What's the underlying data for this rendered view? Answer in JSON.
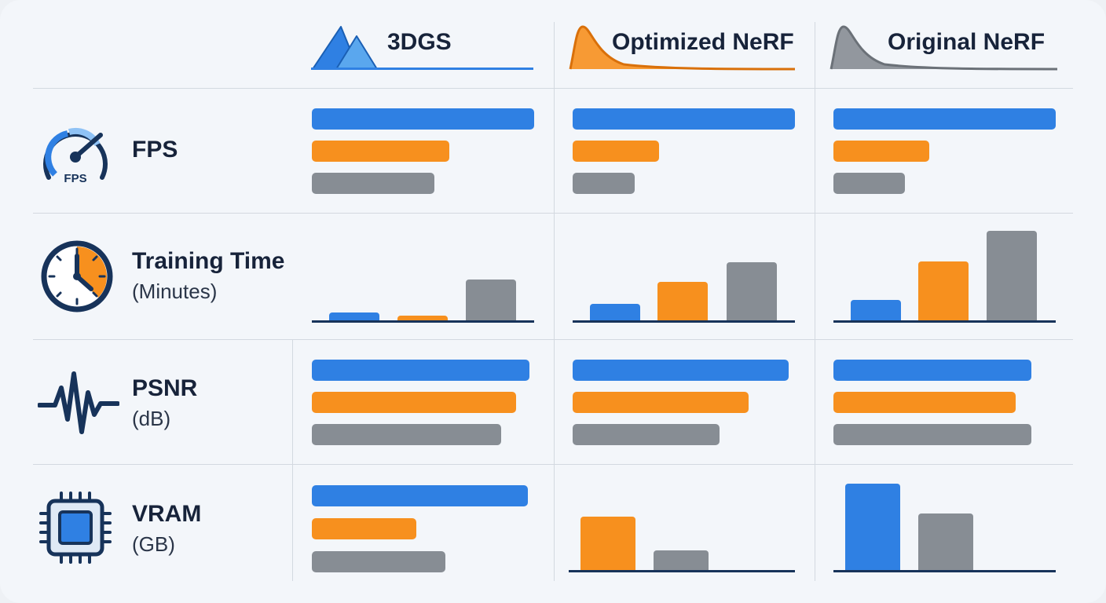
{
  "colors": {
    "3dgs": "#2f80e3",
    "optimized_nerf": "#f7901e",
    "original_nerf": "#878d94",
    "ink": "#17233a",
    "gridline": "#d3d9e0",
    "baseline": "#17335a"
  },
  "headers": [
    {
      "key": "3dgs",
      "label": "3DGS",
      "icon": "mountain-peaks-icon"
    },
    {
      "key": "optimized_nerf",
      "label": "Optimized NeRF",
      "icon": "orange-distribution-curve-icon"
    },
    {
      "key": "original_nerf",
      "label": "Original NeRF",
      "icon": "gray-distribution-curve-icon"
    }
  ],
  "metrics": {
    "fps": {
      "title": "FPS",
      "subtitle": "",
      "icon": "speedometer-icon",
      "icon_label": "FPS"
    },
    "training_time": {
      "title": "Training Time",
      "subtitle": "(Minutes)",
      "icon": "clock-icon"
    },
    "psnr": {
      "title": "PSNR",
      "subtitle": "(dB)",
      "icon": "waveform-icon"
    },
    "vram": {
      "title": "VRAM",
      "subtitle": "(GB)",
      "icon": "chip-icon"
    }
  },
  "chart_data": [
    {
      "type": "bar",
      "orientation": "horizontal",
      "metric": "FPS",
      "panel": "3DGS",
      "series": [
        {
          "color": "#2f80e3",
          "value": 1.0
        },
        {
          "color": "#f7901e",
          "value": 0.62
        },
        {
          "color": "#878d94",
          "value": 0.55
        }
      ],
      "xlim": [
        0,
        1
      ]
    },
    {
      "type": "bar",
      "orientation": "horizontal",
      "metric": "FPS",
      "panel": "Optimized NeRF",
      "series": [
        {
          "color": "#2f80e3",
          "value": 1.0
        },
        {
          "color": "#f7901e",
          "value": 0.39
        },
        {
          "color": "#878d94",
          "value": 0.28
        }
      ],
      "xlim": [
        0,
        1
      ]
    },
    {
      "type": "bar",
      "orientation": "horizontal",
      "metric": "FPS",
      "panel": "Original NeRF",
      "series": [
        {
          "color": "#2f80e3",
          "value": 1.0
        },
        {
          "color": "#f7901e",
          "value": 0.43
        },
        {
          "color": "#878d94",
          "value": 0.32
        }
      ],
      "xlim": [
        0,
        1
      ]
    },
    {
      "type": "bar",
      "orientation": "vertical",
      "metric": "Training Time (Minutes)",
      "panel": "3DGS",
      "series": [
        {
          "color": "#2f80e3",
          "value": 0.09
        },
        {
          "color": "#f7901e",
          "value": 0.05
        },
        {
          "color": "#878d94",
          "value": 0.45
        }
      ],
      "ylim": [
        0,
        1
      ]
    },
    {
      "type": "bar",
      "orientation": "vertical",
      "metric": "Training Time (Minutes)",
      "panel": "Optimized NeRF",
      "series": [
        {
          "color": "#2f80e3",
          "value": 0.23
        },
        {
          "color": "#f7901e",
          "value": 0.53
        },
        {
          "color": "#878d94",
          "value": 0.8
        }
      ],
      "ylim": [
        0,
        1
      ]
    },
    {
      "type": "bar",
      "orientation": "vertical",
      "metric": "Training Time (Minutes)",
      "panel": "Original NeRF",
      "series": [
        {
          "color": "#2f80e3",
          "value": 0.23
        },
        {
          "color": "#f7901e",
          "value": 0.66
        },
        {
          "color": "#878d94",
          "value": 1.0
        }
      ],
      "ylim": [
        0,
        1
      ]
    },
    {
      "type": "bar",
      "orientation": "horizontal",
      "metric": "PSNR (dB)",
      "panel": "3DGS",
      "series": [
        {
          "color": "#2f80e3",
          "value": 0.98
        },
        {
          "color": "#f7901e",
          "value": 0.92
        },
        {
          "color": "#878d94",
          "value": 0.85
        }
      ],
      "xlim": [
        0,
        1
      ]
    },
    {
      "type": "bar",
      "orientation": "horizontal",
      "metric": "PSNR (dB)",
      "panel": "Optimized NeRF",
      "series": [
        {
          "color": "#2f80e3",
          "value": 0.97
        },
        {
          "color": "#f7901e",
          "value": 0.79
        },
        {
          "color": "#878d94",
          "value": 0.66
        }
      ],
      "xlim": [
        0,
        1
      ]
    },
    {
      "type": "bar",
      "orientation": "horizontal",
      "metric": "PSNR (dB)",
      "panel": "Original NeRF",
      "series": [
        {
          "color": "#2f80e3",
          "value": 0.89
        },
        {
          "color": "#f7901e",
          "value": 0.82
        },
        {
          "color": "#878d94",
          "value": 0.89
        }
      ],
      "xlim": [
        0,
        1
      ]
    },
    {
      "type": "bar",
      "orientation": "horizontal",
      "metric": "VRAM (GB)",
      "panel": "3DGS",
      "series": [
        {
          "color": "#2f80e3",
          "value": 0.97
        },
        {
          "color": "#f7901e",
          "value": 0.47
        },
        {
          "color": "#878d94",
          "value": 0.6
        }
      ],
      "xlim": [
        0,
        1
      ]
    },
    {
      "type": "bar",
      "orientation": "vertical",
      "metric": "VRAM (GB)",
      "panel": "Optimized NeRF",
      "series": [
        {
          "color": "#f7901e",
          "value": 0.59
        },
        {
          "color": "#878d94",
          "value": 0.22
        }
      ],
      "ylim": [
        0,
        1
      ]
    },
    {
      "type": "bar",
      "orientation": "vertical",
      "metric": "VRAM (GB)",
      "panel": "Original NeRF",
      "series": [
        {
          "color": "#2f80e3",
          "value": 1.0
        },
        {
          "color": "#878d94",
          "value": 0.65
        }
      ],
      "ylim": [
        0,
        1
      ]
    }
  ]
}
